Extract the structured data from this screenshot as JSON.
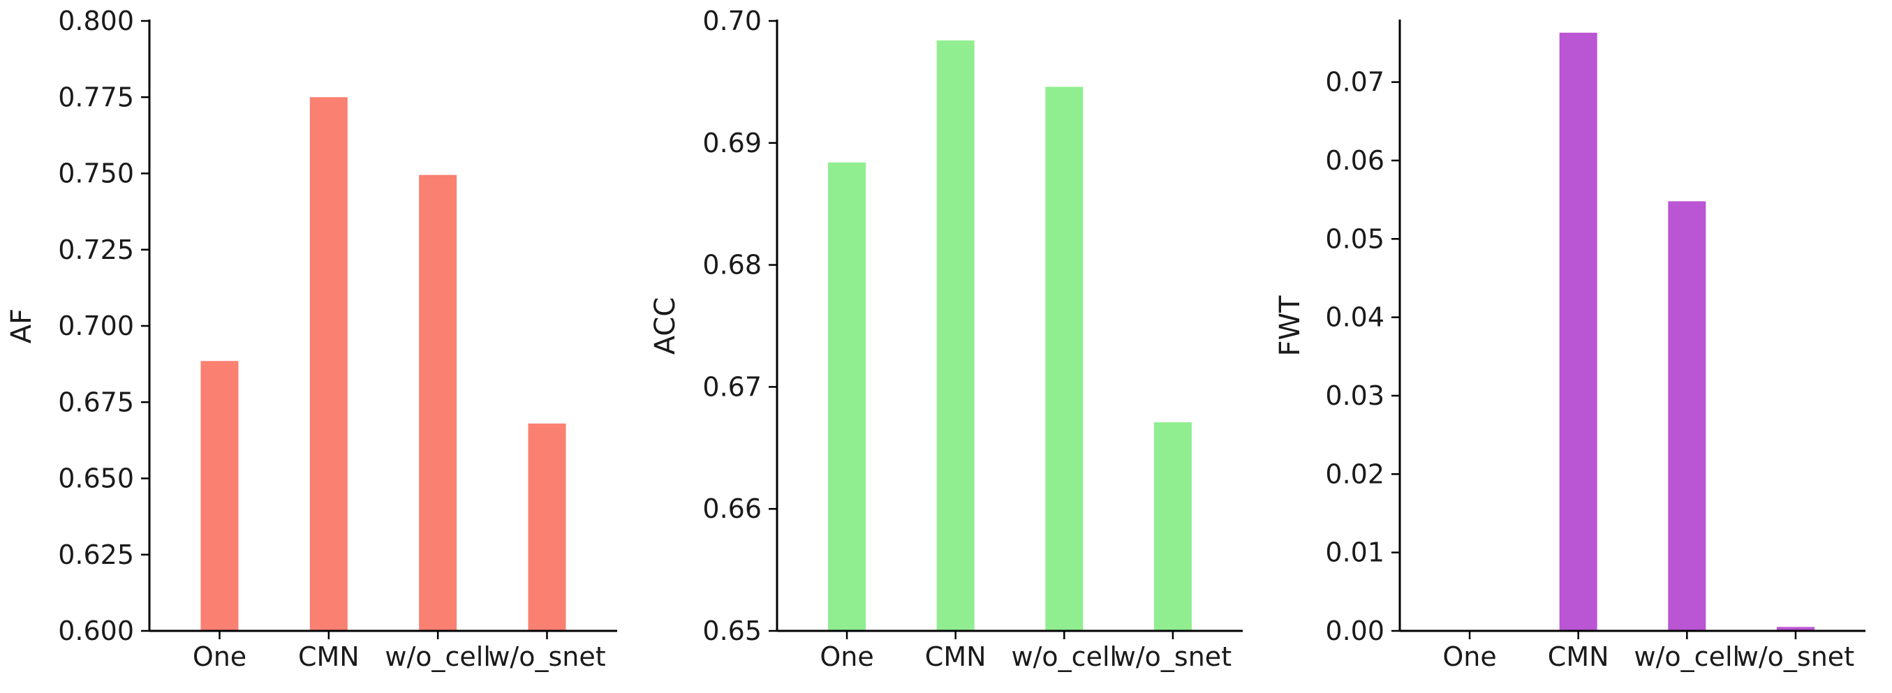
{
  "chart_data": [
    {
      "type": "bar",
      "title": "",
      "xlabel": "",
      "ylabel": "AF",
      "categories": [
        "One",
        "CMN",
        "w/o_cell",
        "w/o_snet"
      ],
      "values": [
        0.6885,
        0.775,
        0.7495,
        0.668
      ],
      "ylim": [
        0.6,
        0.8
      ],
      "yticks": [
        "0.600",
        "0.625",
        "0.650",
        "0.675",
        "0.700",
        "0.725",
        "0.750",
        "0.775",
        "0.800"
      ],
      "color": "#fa8072",
      "grid": false
    },
    {
      "type": "bar",
      "title": "",
      "xlabel": "",
      "ylabel": "ACC",
      "categories": [
        "One",
        "CMN",
        "w/o_cell",
        "w/o_snet"
      ],
      "values": [
        0.6884,
        0.6984,
        0.6946,
        0.6671
      ],
      "ylim": [
        0.65,
        0.7
      ],
      "yticks": [
        "0.65",
        "0.66",
        "0.67",
        "0.68",
        "0.69",
        "0.70"
      ],
      "color": "#90ee90",
      "grid": false
    },
    {
      "type": "bar",
      "title": "",
      "xlabel": "",
      "ylabel": "FWT",
      "categories": [
        "One",
        "CMN",
        "w/o_cell",
        "w/o_snet"
      ],
      "values": [
        0.0,
        0.0763,
        0.0548,
        0.0005
      ],
      "ylim": [
        0.0,
        0.0778
      ],
      "yticks": [
        "0.00",
        "0.01",
        "0.02",
        "0.03",
        "0.04",
        "0.05",
        "0.06",
        "0.07"
      ],
      "color": "#ba55d3",
      "grid": false
    }
  ]
}
